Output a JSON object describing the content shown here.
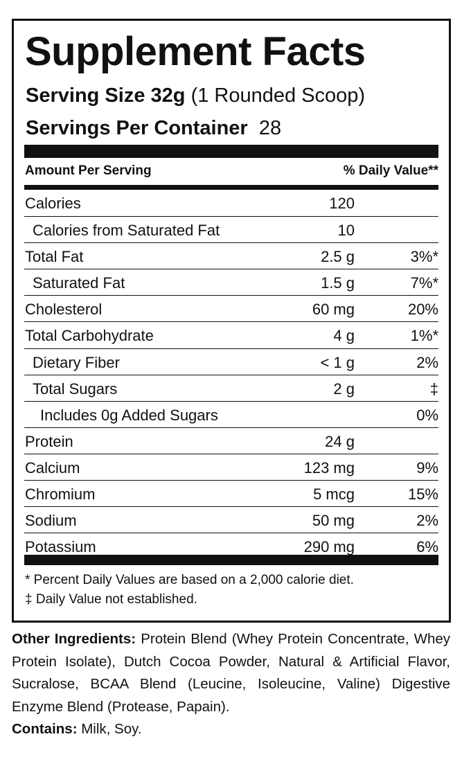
{
  "panel": {
    "title": "Supplement Facts",
    "serving_size_label": "Serving Size 32g",
    "serving_size_value": "(1 Rounded Scoop)",
    "servings_label": "Servings Per Container",
    "servings_value": "28",
    "header_left": "Amount Per Serving",
    "header_right": "% Daily Value**",
    "rows": [
      {
        "name": "Calories",
        "amount": "120",
        "dv": "",
        "indent": 0
      },
      {
        "name": "Calories from Saturated Fat",
        "amount": "10",
        "dv": "",
        "indent": 1
      },
      {
        "name": "Total Fat",
        "amount": "2.5 g",
        "dv": "3%*",
        "indent": 0
      },
      {
        "name": "Saturated Fat",
        "amount": "1.5 g",
        "dv": "7%*",
        "indent": 1
      },
      {
        "name": "Cholesterol",
        "amount": "60 mg",
        "dv": "20%",
        "indent": 0
      },
      {
        "name": "Total Carbohydrate",
        "amount": "4 g",
        "dv": "1%*",
        "indent": 0
      },
      {
        "name": "Dietary Fiber",
        "amount": "< 1 g",
        "dv": "2%",
        "indent": 1
      },
      {
        "name": "Total Sugars",
        "amount": "2 g",
        "dv": "‡",
        "indent": 1
      },
      {
        "name": "Includes 0g Added Sugars",
        "amount": "",
        "dv": "0%",
        "indent": 2
      },
      {
        "name": "Protein",
        "amount": "24 g",
        "dv": "",
        "indent": 0
      },
      {
        "name": "Calcium",
        "amount": "123 mg",
        "dv": "9%",
        "indent": 0
      },
      {
        "name": "Chromium",
        "amount": "5 mcg",
        "dv": "15%",
        "indent": 0
      },
      {
        "name": "Sodium",
        "amount": "50 mg",
        "dv": "2%",
        "indent": 0
      },
      {
        "name": "Potassium",
        "amount": "290 mg",
        "dv": "6%",
        "indent": 0
      }
    ],
    "footnote_1": "* Percent Daily Values are based on a 2,000 calorie diet.",
    "footnote_2": "‡ Daily Value not established."
  },
  "ingredients": {
    "label": "Other Ingredients:",
    "text": " Protein Blend (Whey Protein Concentrate, Whey Protein Isolate), Dutch Cocoa Powder, Natural & Artificial Flavor, Sucralose, BCAA Blend (Leucine, Isoleucine, Valine) Digestive Enzyme Blend (Protease, Papain).",
    "contains_label": "Contains:",
    "contains_text": " Milk, Soy."
  }
}
